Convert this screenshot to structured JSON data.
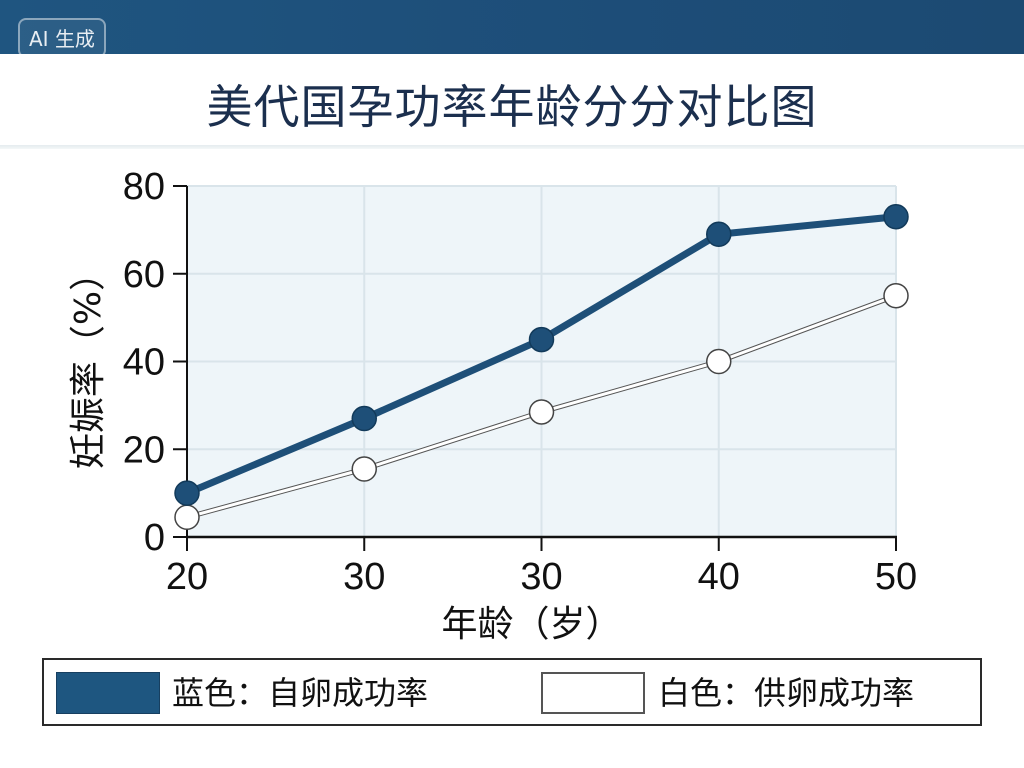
{
  "badge": {
    "label": "AI 生成"
  },
  "header": {
    "title": "美代国孕功率年龄分分对比图"
  },
  "chart_data": {
    "type": "line",
    "title": "美代国孕功率年龄分分对比图",
    "xlabel": "年龄（岁）",
    "ylabel": "妊娠率（%）",
    "categories": [
      "20",
      "30",
      "30",
      "40",
      "50"
    ],
    "yticks": [
      "0",
      "20",
      "40",
      "60",
      "80"
    ],
    "ylim": [
      0,
      80
    ],
    "grid": true,
    "legend_position": "bottom",
    "series": [
      {
        "name": "蓝色：自卵成功率",
        "color": "#1e4f78",
        "marker": "filled-circle",
        "values": [
          10,
          27,
          45,
          69,
          73
        ]
      },
      {
        "name": "白色：供卵成功率",
        "color": "#ffffff",
        "marker": "hollow-circle",
        "values": [
          4.5,
          15.5,
          28.5,
          40,
          55
        ]
      }
    ]
  },
  "legend": {
    "items": [
      {
        "label": "蓝色：自卵成功率",
        "color": "#1e5680"
      },
      {
        "label": "白色：供卵成功率",
        "color": "#ffffff"
      }
    ]
  }
}
